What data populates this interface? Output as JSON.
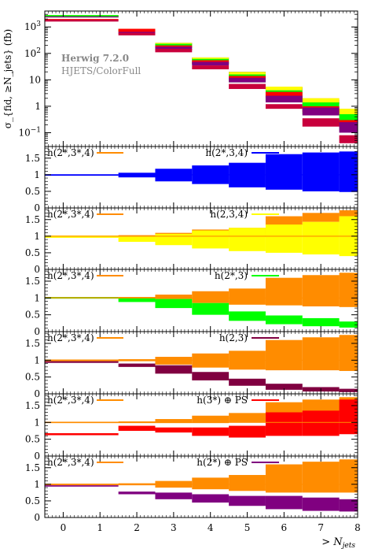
{
  "chart_data": {
    "type": "area",
    "main": {
      "ylabel": "σ_{fid, ≥N_jets} (fb)",
      "yscale": "log",
      "ylim": [
        0.03,
        4000
      ],
      "yticks": [
        {
          "v": 0.1,
          "base": "10",
          "exp": "−1"
        },
        {
          "v": 1,
          "label": "1"
        },
        {
          "v": 10,
          "label": "10"
        },
        {
          "v": 100,
          "base": "10",
          "exp": "2"
        },
        {
          "v": 1000,
          "base": "10",
          "exp": "3"
        }
      ],
      "annotation_title": "Herwig 7.2.0",
      "annotation_sub": "HJETS/ColorFull",
      "bins": [
        -0.5,
        1.5,
        2.5,
        3.5,
        4.5,
        5.5,
        6.5,
        7.5,
        8
      ],
      "series": [
        {
          "color": "#ff8c00",
          "lo": [
            2300,
            700,
            200,
            55,
            15,
            4.0,
            1.3,
            0.4
          ],
          "hi": [
            2800,
            850,
            250,
            70,
            20,
            5.5,
            2.0,
            0.8
          ]
        },
        {
          "color": "#0000ff",
          "lo": [
            2300,
            760,
            215,
            60,
            16,
            4.0,
            1.2,
            0.35
          ],
          "hi": [
            2800,
            850,
            250,
            70,
            20,
            5.0,
            1.7,
            0.6
          ]
        },
        {
          "color": "#ffff00",
          "lo": [
            2300,
            700,
            200,
            55,
            15,
            4.0,
            1.3,
            0.4
          ],
          "hi": [
            2800,
            850,
            250,
            70,
            20,
            5.5,
            2.0,
            0.8
          ]
        },
        {
          "color": "#00ff00",
          "lo": [
            2300,
            650,
            160,
            38,
            8,
            1.6,
            0.5,
            0.12
          ],
          "hi": [
            2800,
            800,
            230,
            62,
            16,
            4.0,
            1.4,
            0.5
          ]
        },
        {
          "color": "#ff0000",
          "lo": [
            1800,
            650,
            170,
            40,
            10,
            2.0,
            0.6,
            0.15
          ],
          "hi": [
            2000,
            850,
            200,
            55,
            14,
            3.5,
            1.0,
            0.3
          ]
        },
        {
          "color": "#800080",
          "lo": [
            2300,
            550,
            130,
            35,
            8,
            1.4,
            0.45,
            0.1
          ],
          "hi": [
            2500,
            650,
            180,
            48,
            12,
            2.5,
            0.9,
            0.25
          ]
        },
        {
          "color": "#c8003c",
          "lo": [
            1600,
            480,
            110,
            25,
            4.5,
            0.8,
            0.17,
            0.04
          ],
          "hi": [
            1900,
            600,
            150,
            35,
            7,
            1.2,
            0.35,
            0.08
          ]
        }
      ]
    },
    "ratio_ylim": [
      0,
      1.85
    ],
    "ratio_yticks": [
      "0",
      "0.5",
      "1",
      "1.5"
    ],
    "ratio_yvals": [
      0,
      0.5,
      1,
      1.5
    ],
    "ratio_panels": [
      {
        "ref_label": "h(2*,3*,4)",
        "ref_color": "#ff8c00",
        "cmp_label": "h(2*,3,4)",
        "cmp_color": "#0000ff",
        "ref_lo": [
          1.0,
          1.0,
          1.0,
          1.0,
          1.0,
          1.0,
          1.0,
          1.0
        ],
        "ref_hi": [
          1.0,
          1.0,
          1.0,
          1.0,
          1.0,
          1.0,
          1.0,
          1.0
        ],
        "cmp_lo": [
          0.97,
          0.92,
          0.8,
          0.72,
          0.62,
          0.55,
          0.5,
          0.48
        ],
        "cmp_hi": [
          1.01,
          1.06,
          1.18,
          1.28,
          1.36,
          1.62,
          1.67,
          1.7
        ],
        "draw_ref": false
      },
      {
        "ref_label": "h(2*,3*,4)",
        "ref_color": "#ff8c00",
        "cmp_label": "h(2,3,4)",
        "cmp_color": "#ffff00",
        "ref_lo": [
          0.97,
          0.97,
          0.97,
          0.97,
          0.97,
          1.33,
          1.43,
          1.6
        ],
        "ref_hi": [
          1.02,
          1.03,
          1.1,
          1.2,
          1.25,
          1.6,
          1.7,
          1.78
        ],
        "cmp_lo": [
          0.95,
          0.83,
          0.73,
          0.63,
          0.55,
          0.5,
          0.45,
          0.4
        ],
        "cmp_hi": [
          1.02,
          1.0,
          1.07,
          1.17,
          1.25,
          1.35,
          1.43,
          1.6
        ],
        "draw_ref": true
      },
      {
        "ref_label": "h(2*,3*,4)",
        "ref_color": "#ff8c00",
        "cmp_label": "h(2*,3)",
        "cmp_color": "#00ff00",
        "ref_lo": [
          1.0,
          0.97,
          0.97,
          0.85,
          0.8,
          0.78,
          0.75,
          0.73
        ],
        "ref_hi": [
          1.03,
          1.03,
          1.1,
          1.2,
          1.28,
          1.6,
          1.68,
          1.75
        ],
        "cmp_lo": [
          0.98,
          0.88,
          0.7,
          0.5,
          0.32,
          0.22,
          0.16,
          0.12
        ],
        "cmp_hi": [
          1.02,
          1.0,
          0.97,
          0.85,
          0.6,
          0.48,
          0.4,
          0.3
        ],
        "draw_ref": true
      },
      {
        "ref_label": "h(2*,3*,4)",
        "ref_color": "#ff8c00",
        "cmp_label": "h(2,3)",
        "cmp_color": "#800040",
        "ref_lo": [
          0.97,
          0.97,
          0.87,
          0.78,
          0.72,
          0.7,
          0.7,
          0.68
        ],
        "ref_hi": [
          1.02,
          1.03,
          1.1,
          1.2,
          1.28,
          1.6,
          1.68,
          1.75
        ],
        "cmp_lo": [
          0.92,
          0.8,
          0.6,
          0.4,
          0.24,
          0.12,
          0.07,
          0.05
        ],
        "cmp_hi": [
          0.97,
          0.9,
          0.85,
          0.65,
          0.45,
          0.3,
          0.2,
          0.15
        ],
        "draw_ref": true
      },
      {
        "ref_label": "h(2*,3*,4)",
        "ref_color": "#ff8c00",
        "cmp_label": "h(3*) ⊕ PS",
        "cmp_color": "#ff0000",
        "ref_lo": [
          0.98,
          0.98,
          0.98,
          0.98,
          1.0,
          1.2,
          1.2,
          1.3
        ],
        "ref_hi": [
          1.02,
          1.03,
          1.1,
          1.2,
          1.28,
          1.6,
          1.68,
          1.75
        ],
        "cmp_lo": [
          0.62,
          0.75,
          0.7,
          0.6,
          0.55,
          0.6,
          0.6,
          0.65
        ],
        "cmp_hi": [
          0.68,
          0.9,
          0.85,
          0.85,
          0.9,
          1.3,
          1.35,
          1.68
        ],
        "draw_ref": true
      },
      {
        "ref_label": "h(2*,3*,4)",
        "ref_color": "#ff8c00",
        "cmp_label": "h(2*) ⊕ PS",
        "cmp_color": "#800080",
        "ref_lo": [
          0.97,
          0.97,
          0.9,
          0.85,
          0.8,
          0.75,
          0.75,
          0.75
        ],
        "ref_hi": [
          1.02,
          1.03,
          1.1,
          1.2,
          1.28,
          1.6,
          1.68,
          1.75
        ],
        "cmp_lo": [
          0.93,
          0.7,
          0.55,
          0.45,
          0.35,
          0.25,
          0.2,
          0.18
        ],
        "cmp_hi": [
          0.97,
          0.78,
          0.75,
          0.7,
          0.65,
          0.65,
          0.6,
          0.55
        ],
        "draw_ref": true
      }
    ],
    "xlim": [
      -0.5,
      8
    ],
    "xticks": [
      0,
      1,
      2,
      3,
      4,
      5,
      6,
      7,
      8
    ],
    "xlabel_prefix": ">",
    "xlabel_var": "N",
    "xlabel_sub": "jets"
  }
}
